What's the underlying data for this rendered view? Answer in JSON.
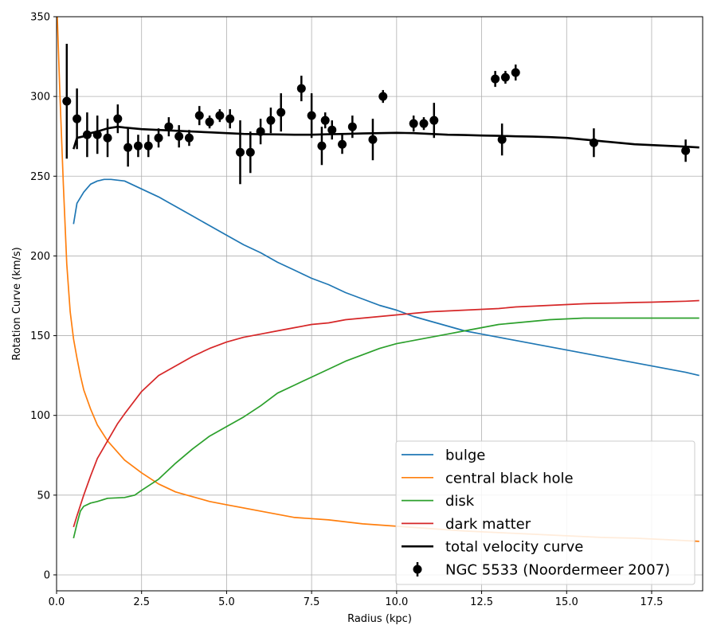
{
  "chart_data": {
    "type": "line",
    "xlabel": "Radius (kpc)",
    "ylabel": "Rotation Curve (km/s)",
    "xlim": [
      0,
      19
    ],
    "ylim": [
      -10,
      350
    ],
    "x_ticks": [
      0.0,
      2.5,
      5.0,
      7.5,
      10.0,
      12.5,
      15.0,
      17.5
    ],
    "x_tick_labels": [
      "0.0",
      "2.5",
      "5.0",
      "7.5",
      "10.0",
      "12.5",
      "15.0",
      "17.5"
    ],
    "y_ticks": [
      0,
      50,
      100,
      150,
      200,
      250,
      300,
      350
    ],
    "y_tick_labels": [
      "0",
      "50",
      "100",
      "150",
      "200",
      "250",
      "300",
      "350"
    ],
    "grid": true,
    "legend_position": "bottom-right",
    "series": [
      {
        "name": "bulge",
        "color": "#1f77b4",
        "x": [
          0.5,
          0.6,
          0.8,
          1.0,
          1.2,
          1.4,
          1.6,
          1.8,
          2.0,
          2.2,
          2.5,
          3.0,
          3.5,
          4.0,
          4.5,
          5.0,
          5.5,
          6.0,
          6.5,
          7.0,
          7.5,
          8.0,
          8.5,
          9.0,
          9.5,
          10.0,
          10.5,
          11.0,
          11.5,
          12.0,
          12.5,
          13.0,
          13.5,
          14.0,
          14.5,
          15.0,
          15.5,
          16.0,
          16.5,
          17.0,
          17.5,
          18.0,
          18.5,
          18.9
        ],
        "y": [
          220,
          233,
          240,
          245,
          247,
          248,
          248,
          247.5,
          247,
          245,
          242,
          237,
          231,
          225,
          219,
          213,
          207,
          202,
          196,
          191,
          186,
          182,
          177,
          173,
          169,
          166,
          162,
          159,
          156,
          153,
          151,
          149,
          147,
          145,
          143,
          141,
          139,
          137,
          135,
          133,
          131,
          129,
          127,
          125
        ]
      },
      {
        "name": "central black hole",
        "color": "#ff7f0e",
        "x": [
          0.02,
          0.1,
          0.2,
          0.3,
          0.4,
          0.5,
          0.6,
          0.7,
          0.8,
          1.0,
          1.2,
          1.5,
          2.0,
          2.5,
          3.0,
          3.5,
          4.0,
          4.5,
          5.0,
          6.0,
          7.0,
          8.0,
          9.0,
          10.0,
          11.0,
          12.0,
          13.0,
          14.0,
          15.0,
          16.0,
          17.0,
          18.0,
          18.9
        ],
        "y": [
          350,
          300,
          245,
          195,
          165,
          148,
          136,
          125,
          116,
          104,
          94,
          84,
          72,
          64,
          57,
          52,
          49,
          46,
          44,
          40,
          36,
          34.5,
          32,
          30.5,
          29,
          27.5,
          26.5,
          25.5,
          24.5,
          23.5,
          23,
          22,
          21
        ]
      },
      {
        "name": "disk",
        "color": "#2ca02c",
        "x": [
          0.5,
          0.6,
          0.7,
          0.8,
          1.0,
          1.2,
          1.5,
          2.0,
          2.3,
          2.5,
          3.0,
          3.5,
          4.0,
          4.5,
          5.0,
          5.5,
          6.0,
          6.5,
          7.0,
          7.5,
          8.0,
          8.5,
          9.0,
          9.5,
          10.0,
          10.5,
          11.0,
          11.5,
          12.0,
          12.5,
          13.0,
          13.5,
          14.0,
          14.5,
          15.0,
          15.5,
          16.0,
          16.5,
          17.0,
          17.5,
          18.0,
          18.5,
          18.9
        ],
        "y": [
          23,
          32,
          40,
          43,
          45,
          46,
          48,
          48.5,
          50,
          53,
          60,
          70,
          79,
          87,
          93,
          99,
          106,
          114,
          119,
          124,
          129,
          134,
          138,
          142,
          145,
          147,
          149,
          151,
          153,
          155,
          157,
          158,
          159,
          160,
          160.5,
          161,
          161,
          161,
          161,
          161,
          161,
          161,
          161
        ]
      },
      {
        "name": "dark matter",
        "color": "#d62728",
        "x": [
          0.5,
          0.6,
          0.8,
          1.0,
          1.2,
          1.5,
          1.8,
          2.0,
          2.5,
          3.0,
          3.5,
          4.0,
          4.5,
          5.0,
          5.5,
          6.0,
          6.5,
          7.0,
          7.5,
          8.0,
          8.5,
          9.0,
          9.5,
          10.0,
          10.5,
          11.0,
          11.5,
          12.0,
          12.5,
          13.0,
          13.5,
          14.0,
          14.5,
          15.0,
          15.5,
          16.0,
          16.5,
          17.0,
          17.5,
          18.0,
          18.5,
          18.9
        ],
        "y": [
          30,
          37,
          50,
          62,
          73,
          84,
          95,
          101,
          115,
          125,
          131,
          137,
          142,
          146,
          149,
          151,
          153,
          155,
          157,
          158,
          160,
          161,
          162,
          163,
          164,
          165,
          165.5,
          166,
          166.5,
          167,
          168,
          168.5,
          169,
          169.5,
          170,
          170.3,
          170.5,
          170.8,
          171,
          171.3,
          171.6,
          172
        ]
      },
      {
        "name": "total velocity curve",
        "color": "#000000",
        "x": [
          0.5,
          0.6,
          0.8,
          1.0,
          1.2,
          1.5,
          1.8,
          2.0,
          2.5,
          3.0,
          3.5,
          4.0,
          4.5,
          5.0,
          5.5,
          6.0,
          6.5,
          7.0,
          7.5,
          8.0,
          8.5,
          9.0,
          9.5,
          10.0,
          10.5,
          11.0,
          11.5,
          12.0,
          12.5,
          13.0,
          13.5,
          14.0,
          14.5,
          15.0,
          15.5,
          16.0,
          16.5,
          17.0,
          17.5,
          18.0,
          18.5,
          18.9
        ],
        "y": [
          267,
          274,
          275,
          277,
          278,
          280,
          281,
          280.5,
          279.5,
          279,
          278.5,
          278,
          277.5,
          277,
          276.5,
          276.3,
          276.2,
          276,
          276,
          276.3,
          276.5,
          276.8,
          277,
          277.2,
          277,
          276.5,
          276,
          275.8,
          275.5,
          275.3,
          275,
          274.8,
          274.5,
          274,
          273,
          272,
          271,
          270,
          269.5,
          269,
          268.5,
          268
        ]
      }
    ],
    "observations": {
      "name": "NGC 5533 (Noordermeer 2007)",
      "color": "#000000",
      "x": [
        0.3,
        0.6,
        0.9,
        1.2,
        1.5,
        1.8,
        2.1,
        2.4,
        2.7,
        3.0,
        3.3,
        3.6,
        3.9,
        4.2,
        4.5,
        4.8,
        5.1,
        5.4,
        5.7,
        6.0,
        6.3,
        6.6,
        7.2,
        7.5,
        7.8,
        7.9,
        8.1,
        8.4,
        8.7,
        9.3,
        9.6,
        10.5,
        10.8,
        11.1,
        12.9,
        13.1,
        13.2,
        13.5,
        15.8,
        18.5
      ],
      "y": [
        297,
        286,
        276,
        276,
        274,
        286,
        268,
        269,
        269,
        274,
        281,
        275,
        274,
        288,
        284,
        288,
        286,
        265,
        265,
        278,
        285,
        290,
        305,
        288,
        269,
        285,
        279,
        270,
        281,
        273,
        300,
        283,
        283,
        285,
        311,
        273,
        312,
        315,
        271,
        266
      ],
      "err": [
        36,
        19,
        14,
        12,
        12,
        9,
        12,
        7,
        7,
        6,
        6,
        7,
        5,
        6,
        4,
        4,
        6,
        20,
        13,
        8,
        8,
        12,
        8,
        14,
        12,
        5,
        6,
        6,
        7,
        13,
        4,
        5,
        4,
        11,
        5,
        10,
        4,
        5,
        9,
        7
      ]
    }
  }
}
